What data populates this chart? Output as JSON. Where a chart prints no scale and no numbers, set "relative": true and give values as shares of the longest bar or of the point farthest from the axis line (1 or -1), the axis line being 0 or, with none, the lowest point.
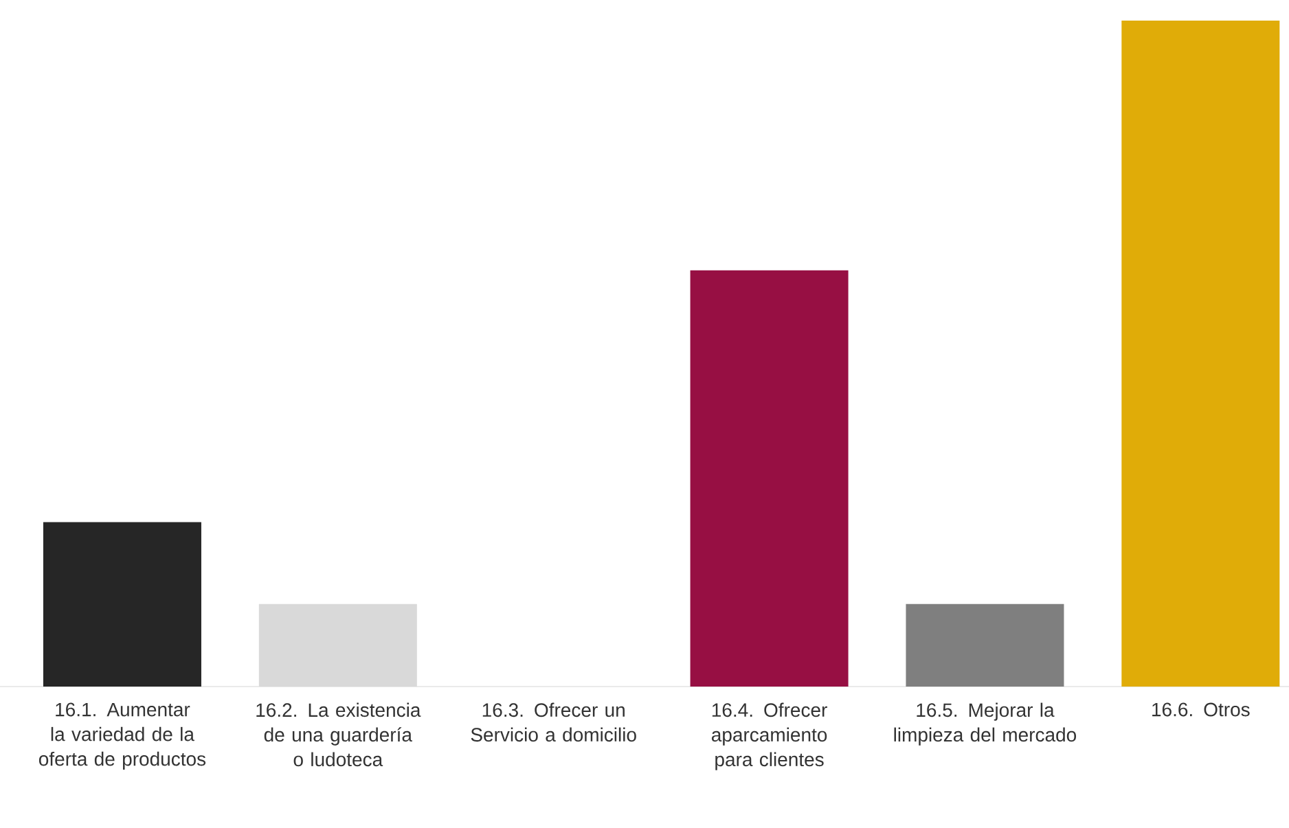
{
  "chart_data": {
    "type": "bar",
    "relative": true,
    "categories": [
      "16.1. Aumentar la variedad de la oferta de productos",
      "16.2. La existencia de una guardería o ludoteca",
      "16.3. Ofrecer un Servicio a domicilio",
      "16.4. Ofrecer aparcamiento para clientes",
      "16.5. Mejorar la limpieza del mercado",
      "16.6. Otros"
    ],
    "values": [
      0.247,
      0.124,
      0,
      0.625,
      0.124,
      1
    ],
    "colors": [
      "#262626",
      "#d9d9d9",
      "#bfbfbf",
      "#970f43",
      "#7f7f7f",
      "#e0ac08"
    ]
  }
}
